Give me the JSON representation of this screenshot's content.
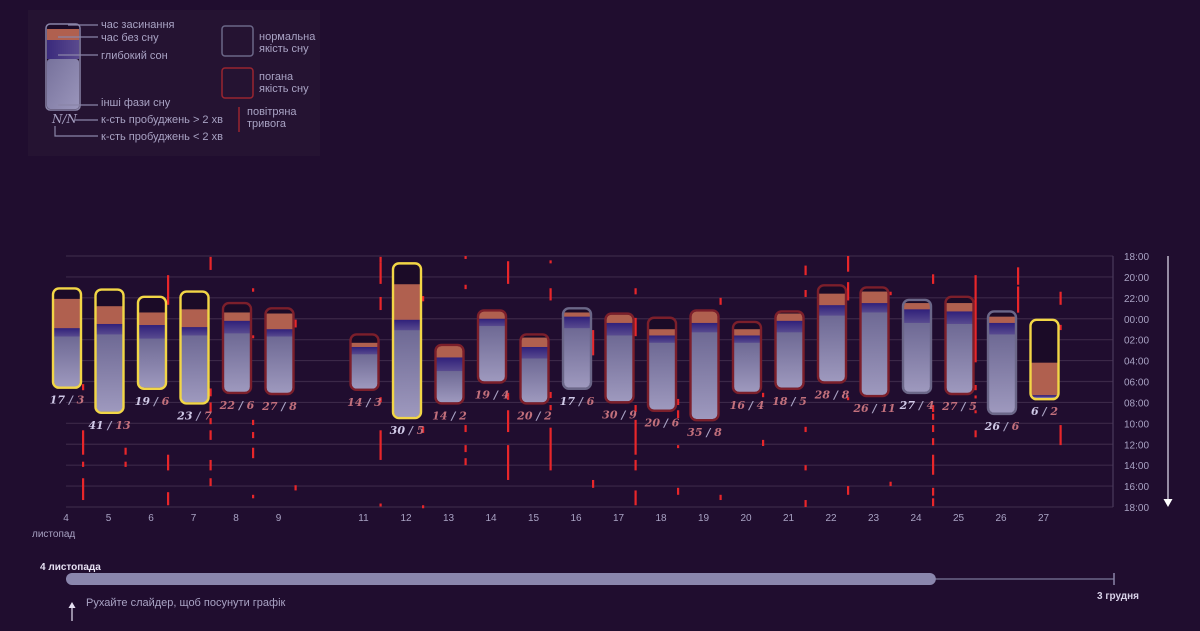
{
  "legend": {
    "falling_asleep": "час засинання",
    "awake": "час без сну",
    "deep": "глибокий сон",
    "other": "інші фази сну",
    "nn": "N/N",
    "wakeups_long": "к-сть пробуджень > 2 хв",
    "wakeups_short": "к-сть пробуджень < 2 хв",
    "normal_quality": "нормальна якість сну",
    "bad_quality": "погана якість сну",
    "air_raid": "повітряна тривога"
  },
  "colors": {
    "background": "#200d2f",
    "falling_asleep": "#1b0b27",
    "awake": "#b0604f",
    "deep": "#3c2c7e",
    "other": "#8f8ab3",
    "normal_border": "#6b6788",
    "bad_border": "#7c1f2b",
    "highlight_border": "#f2d646",
    "air_raid": "#e8262a"
  },
  "chart_data": {
    "type": "range-bar",
    "y_axis": {
      "start": "18:00",
      "end": "18:00",
      "ticks": [
        "18:00",
        "20:00",
        "22:00",
        "00:00",
        "02:00",
        "04:00",
        "06:00",
        "08:00",
        "10:00",
        "12:00",
        "14:00",
        "16:00",
        "18:00"
      ]
    },
    "x_axis": {
      "month_label": "листопад",
      "ticks": [
        "4",
        "5",
        "6",
        "7",
        "8",
        "9",
        "11",
        "12",
        "13",
        "14",
        "15",
        "16",
        "17",
        "18",
        "19",
        "20",
        "21",
        "22",
        "23",
        "24",
        "25",
        "26",
        "27"
      ]
    },
    "grid": true,
    "nights": [
      {
        "day": 4,
        "start": "21:12",
        "asleep": "22:06",
        "awake_end": "00:54",
        "deep_end": "01:42",
        "end": "06:30",
        "quality": "highlight",
        "long": "17",
        "short": "3"
      },
      {
        "day": 5,
        "start": "21:18",
        "asleep": "22:48",
        "awake_end": "00:30",
        "deep_end": "01:30",
        "end": "08:54",
        "quality": "highlight",
        "long": "41",
        "short": "13"
      },
      {
        "day": 6,
        "start": "22:00",
        "asleep": "23:24",
        "awake_end": "00:36",
        "deep_end": "01:54",
        "end": "06:36",
        "quality": "highlight",
        "long": "19",
        "short": "6"
      },
      {
        "day": 7,
        "start": "21:30",
        "asleep": "23:06",
        "awake_end": "00:48",
        "deep_end": "01:36",
        "end": "08:00",
        "quality": "highlight",
        "long": "23",
        "short": "7"
      },
      {
        "day": 8,
        "start": "22:36",
        "asleep": "23:24",
        "awake_end": "00:12",
        "deep_end": "01:24",
        "end": "07:00",
        "quality": "bad",
        "long": "22",
        "short": "6"
      },
      {
        "day": 9,
        "start": "23:06",
        "asleep": "23:30",
        "awake_end": "01:00",
        "deep_end": "01:42",
        "end": "07:06",
        "quality": "bad",
        "long": "27",
        "short": "8"
      },
      {
        "day": 11,
        "start": "01:36",
        "asleep": "02:18",
        "awake_end": "02:42",
        "deep_end": "03:24",
        "end": "06:42",
        "quality": "bad",
        "long": "14",
        "short": "3"
      },
      {
        "day": 12,
        "start": "18:48",
        "asleep": "20:42",
        "awake_end": "00:06",
        "deep_end": "01:06",
        "end": "09:24",
        "quality": "highlight",
        "long": "30",
        "short": "5"
      },
      {
        "day": 13,
        "start": "02:36",
        "asleep": "02:36",
        "awake_end": "03:42",
        "deep_end": "05:00",
        "end": "08:00",
        "quality": "bad",
        "long": "14",
        "short": "2"
      },
      {
        "day": 14,
        "start": "23:18",
        "asleep": "23:18",
        "awake_end": "00:00",
        "deep_end": "00:42",
        "end": "06:00",
        "quality": "bad",
        "long": "19",
        "short": "4"
      },
      {
        "day": 15,
        "start": "01:36",
        "asleep": "01:48",
        "awake_end": "02:42",
        "deep_end": "03:48",
        "end": "08:00",
        "quality": "bad",
        "long": "20",
        "short": "2"
      },
      {
        "day": 16,
        "start": "23:06",
        "asleep": "23:24",
        "awake_end": "23:48",
        "deep_end": "00:54",
        "end": "06:36",
        "quality": "normal",
        "long": "17",
        "short": "6"
      },
      {
        "day": 17,
        "start": "23:36",
        "asleep": "23:36",
        "awake_end": "00:24",
        "deep_end": "01:36",
        "end": "07:54",
        "quality": "bad",
        "long": "30",
        "short": "9"
      },
      {
        "day": 18,
        "start": "00:00",
        "asleep": "01:00",
        "awake_end": "01:36",
        "deep_end": "02:18",
        "end": "08:42",
        "quality": "bad",
        "long": "20",
        "short": "6"
      },
      {
        "day": 19,
        "start": "23:18",
        "asleep": "23:18",
        "awake_end": "00:24",
        "deep_end": "01:18",
        "end": "09:36",
        "quality": "bad",
        "long": "35",
        "short": "8"
      },
      {
        "day": 20,
        "start": "00:24",
        "asleep": "01:00",
        "awake_end": "01:36",
        "deep_end": "02:18",
        "end": "07:00",
        "quality": "bad",
        "long": "16",
        "short": "4"
      },
      {
        "day": 21,
        "start": "23:24",
        "asleep": "23:30",
        "awake_end": "00:12",
        "deep_end": "01:18",
        "end": "06:36",
        "quality": "bad",
        "long": "18",
        "short": "5"
      },
      {
        "day": 22,
        "start": "20:54",
        "asleep": "21:36",
        "awake_end": "22:42",
        "deep_end": "23:42",
        "end": "06:00",
        "quality": "bad",
        "long": "28",
        "short": "8"
      },
      {
        "day": 23,
        "start": "21:06",
        "asleep": "21:24",
        "awake_end": "22:30",
        "deep_end": "23:24",
        "end": "07:18",
        "quality": "bad",
        "long": "26",
        "short": "11"
      },
      {
        "day": 24,
        "start": "22:18",
        "asleep": "22:30",
        "awake_end": "23:06",
        "deep_end": "00:24",
        "end": "07:00",
        "quality": "normal",
        "long": "27",
        "short": "4"
      },
      {
        "day": 25,
        "start": "22:00",
        "asleep": "22:30",
        "awake_end": "23:18",
        "deep_end": "00:30",
        "end": "07:06",
        "quality": "bad",
        "long": "27",
        "short": "5"
      },
      {
        "day": 26,
        "start": "23:24",
        "asleep": "23:48",
        "awake_end": "00:24",
        "deep_end": "01:30",
        "end": "09:00",
        "quality": "normal",
        "long": "26",
        "short": "6"
      },
      {
        "day": 27,
        "start": "00:12",
        "asleep": "04:12",
        "awake_end": "07:18",
        "deep_end": "07:30",
        "end": "07:36",
        "quality": "highlight",
        "long": "6",
        "short": "2"
      }
    ],
    "air_raid_alerts": [
      {
        "day": 4,
        "start": "06:15",
        "end": "06:50"
      },
      {
        "day": 4,
        "start": "10:40",
        "end": "13:00"
      },
      {
        "day": 4,
        "start": "13:40",
        "end": "14:10"
      },
      {
        "day": 4,
        "start": "15:15",
        "end": "17:20"
      },
      {
        "day": 5,
        "start": "12:20",
        "end": "13:00"
      },
      {
        "day": 5,
        "start": "13:40",
        "end": "14:10"
      },
      {
        "day": 6,
        "start": "19:50",
        "end": "22:40"
      },
      {
        "day": 6,
        "start": "13:00",
        "end": "14:30"
      },
      {
        "day": 6,
        "start": "16:35",
        "end": "17:50"
      },
      {
        "day": 7,
        "start": "18:05",
        "end": "19:20"
      },
      {
        "day": 7,
        "start": "06:40",
        "end": "07:25"
      },
      {
        "day": 7,
        "start": "08:00",
        "end": "08:55"
      },
      {
        "day": 7,
        "start": "09:30",
        "end": "10:05"
      },
      {
        "day": 7,
        "start": "10:40",
        "end": "11:35"
      },
      {
        "day": 7,
        "start": "13:30",
        "end": "14:30"
      },
      {
        "day": 7,
        "start": "15:15",
        "end": "16:00"
      },
      {
        "day": 8,
        "start": "21:05",
        "end": "21:25"
      },
      {
        "day": 8,
        "start": "01:35",
        "end": "01:45"
      },
      {
        "day": 8,
        "start": "09:40",
        "end": "10:10"
      },
      {
        "day": 8,
        "start": "10:50",
        "end": "11:25"
      },
      {
        "day": 8,
        "start": "12:20",
        "end": "13:20"
      },
      {
        "day": 8,
        "start": "16:50",
        "end": "17:10"
      },
      {
        "day": 9,
        "start": "00:05",
        "end": "00:50"
      },
      {
        "day": 9,
        "start": "15:55",
        "end": "16:25"
      },
      {
        "day": 11,
        "start": "18:05",
        "end": "18:35"
      },
      {
        "day": 11,
        "start": "18:35",
        "end": "20:40"
      },
      {
        "day": 11,
        "start": "21:55",
        "end": "23:10"
      },
      {
        "day": 11,
        "start": "07:30",
        "end": "08:00"
      },
      {
        "day": 11,
        "start": "10:40",
        "end": "13:30"
      },
      {
        "day": 11,
        "start": "17:40",
        "end": "17:50"
      },
      {
        "day": 12,
        "start": "21:50",
        "end": "22:20"
      },
      {
        "day": 12,
        "start": "10:20",
        "end": "10:55"
      },
      {
        "day": 12,
        "start": "17:50",
        "end": "18:00"
      },
      {
        "day": 13,
        "start": "18:00",
        "end": "18:10"
      },
      {
        "day": 13,
        "start": "20:45",
        "end": "21:10"
      },
      {
        "day": 13,
        "start": "10:10",
        "end": "10:50"
      },
      {
        "day": 13,
        "start": "12:05",
        "end": "12:45"
      },
      {
        "day": 13,
        "start": "13:20",
        "end": "14:00"
      },
      {
        "day": 14,
        "start": "18:30",
        "end": "20:40"
      },
      {
        "day": 14,
        "start": "07:05",
        "end": "07:45"
      },
      {
        "day": 14,
        "start": "08:45",
        "end": "10:50"
      },
      {
        "day": 14,
        "start": "12:05",
        "end": "15:25"
      },
      {
        "day": 15,
        "start": "18:25",
        "end": "18:30"
      },
      {
        "day": 15,
        "start": "21:05",
        "end": "22:15"
      },
      {
        "day": 15,
        "start": "07:00",
        "end": "07:35"
      },
      {
        "day": 15,
        "start": "08:15",
        "end": "08:45"
      },
      {
        "day": 15,
        "start": "10:25",
        "end": "14:30"
      },
      {
        "day": 16,
        "start": "01:05",
        "end": "03:30"
      },
      {
        "day": 16,
        "start": "15:25",
        "end": "16:10"
      },
      {
        "day": 17,
        "start": "21:05",
        "end": "21:40"
      },
      {
        "day": 17,
        "start": "23:55",
        "end": "01:40"
      },
      {
        "day": 17,
        "start": "08:15",
        "end": "08:55"
      },
      {
        "day": 17,
        "start": "09:40",
        "end": "13:00"
      },
      {
        "day": 17,
        "start": "13:30",
        "end": "14:30"
      },
      {
        "day": 17,
        "start": "16:25",
        "end": "17:50"
      },
      {
        "day": 18,
        "start": "07:40",
        "end": "08:15"
      },
      {
        "day": 18,
        "start": "08:45",
        "end": "09:30"
      },
      {
        "day": 18,
        "start": "12:05",
        "end": "12:20"
      },
      {
        "day": 18,
        "start": "16:10",
        "end": "16:50"
      },
      {
        "day": 19,
        "start": "22:00",
        "end": "22:40"
      },
      {
        "day": 19,
        "start": "16:50",
        "end": "17:20"
      },
      {
        "day": 20,
        "start": "07:05",
        "end": "07:30"
      },
      {
        "day": 20,
        "start": "11:35",
        "end": "12:10"
      },
      {
        "day": 21,
        "start": "18:55",
        "end": "19:50"
      },
      {
        "day": 21,
        "start": "21:15",
        "end": "21:55"
      },
      {
        "day": 21,
        "start": "10:20",
        "end": "10:50"
      },
      {
        "day": 21,
        "start": "14:00",
        "end": "14:30"
      },
      {
        "day": 21,
        "start": "17:20",
        "end": "18:00"
      },
      {
        "day": 22,
        "start": "18:00",
        "end": "19:30"
      },
      {
        "day": 22,
        "start": "20:30",
        "end": "22:15"
      },
      {
        "day": 22,
        "start": "07:30",
        "end": "07:45"
      },
      {
        "day": 22,
        "start": "16:00",
        "end": "16:50"
      },
      {
        "day": 23,
        "start": "21:25",
        "end": "21:45"
      },
      {
        "day": 23,
        "start": "15:35",
        "end": "16:00"
      },
      {
        "day": 24,
        "start": "19:45",
        "end": "20:40"
      },
      {
        "day": 24,
        "start": "08:15",
        "end": "08:55"
      },
      {
        "day": 24,
        "start": "09:05",
        "end": "09:40"
      },
      {
        "day": 24,
        "start": "10:10",
        "end": "10:50"
      },
      {
        "day": 24,
        "start": "11:25",
        "end": "12:05"
      },
      {
        "day": 24,
        "start": "13:00",
        "end": "14:55"
      },
      {
        "day": 24,
        "start": "16:10",
        "end": "16:55"
      },
      {
        "day": 24,
        "start": "17:10",
        "end": "17:55"
      },
      {
        "day": 25,
        "start": "19:50",
        "end": "04:10"
      },
      {
        "day": 25,
        "start": "06:20",
        "end": "06:50"
      },
      {
        "day": 25,
        "start": "07:20",
        "end": "07:30"
      },
      {
        "day": 25,
        "start": "08:45",
        "end": "09:00"
      },
      {
        "day": 25,
        "start": "10:40",
        "end": "11:20"
      },
      {
        "day": 26,
        "start": "19:05",
        "end": "20:45"
      },
      {
        "day": 26,
        "start": "20:55",
        "end": "23:25"
      },
      {
        "day": 27,
        "start": "21:25",
        "end": "22:40"
      },
      {
        "day": 27,
        "start": "00:35",
        "end": "01:05"
      },
      {
        "day": 27,
        "start": "10:10",
        "end": "12:05"
      }
    ]
  },
  "slider": {
    "start_label": "4 листопада",
    "end_label": "3 грудня",
    "position": 0.83,
    "hint": "Рухайте слайдер, щоб посунути графік"
  }
}
